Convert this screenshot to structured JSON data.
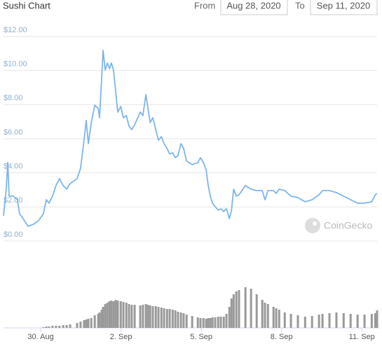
{
  "chart_data": {
    "type": "line",
    "title": "Sushi Chart",
    "controls": {
      "from_label": "From",
      "from_value": "Aug 28, 2020",
      "to_label": "To",
      "to_value": "Sep 11, 2020"
    },
    "watermark": "CoinGecko",
    "x": [
      28.61,
      28.71,
      28.77,
      28.82,
      28.98,
      29.13,
      29.21,
      29.34,
      29.53,
      29.74,
      29.92,
      30.1,
      30.21,
      30.31,
      30.44,
      30.57,
      30.7,
      30.84,
      30.97,
      31.1,
      31.36,
      31.49,
      31.62,
      31.7,
      31.78,
      31.89,
      32.02,
      32.15,
      32.2,
      32.28,
      32.33,
      32.41,
      32.49,
      32.57,
      32.64,
      32.72,
      32.8,
      32.88,
      32.99,
      33.09,
      33.2,
      33.3,
      33.4,
      33.51,
      33.72,
      33.82,
      33.93,
      34.01,
      34.09,
      34.19,
      34.3,
      34.4,
      34.51,
      34.61,
      34.72,
      34.82,
      34.93,
      35.03,
      35.13,
      35.24,
      35.34,
      35.45,
      35.66,
      35.87,
      35.97,
      36.08,
      36.18,
      36.26,
      36.34,
      36.42,
      36.52,
      36.63,
      36.73,
      36.84,
      36.94,
      37.05,
      37.13,
      37.21,
      37.31,
      37.41,
      37.65,
      37.86,
      38.07,
      38.28,
      38.38,
      38.49,
      38.7,
      38.8,
      38.91,
      39.12,
      39.35,
      39.61,
      39.88,
      40.14,
      40.4,
      40.53,
      40.79,
      41.05,
      41.32,
      41.58,
      41.84,
      42.1,
      42.37,
      42.5,
      42.57
    ],
    "series": [
      {
        "color": "#7cb5ec",
        "values": [
          1.48,
          3.04,
          4.6,
          2.63,
          2.63,
          2.42,
          1.6,
          1.32,
          0.86,
          0.99,
          1.19,
          1.6,
          2.42,
          2.22,
          2.63,
          3.25,
          3.66,
          3.25,
          3.04,
          3.37,
          3.66,
          4.27,
          5.92,
          7.07,
          5.71,
          6.95,
          7.97,
          7.77,
          7.23,
          9.62,
          11.18,
          10.03,
          10.44,
          10.11,
          10.44,
          10.03,
          8.8,
          7.56,
          7.89,
          7.23,
          7.36,
          6.74,
          6.53,
          6.82,
          7.56,
          7.36,
          8.59,
          7.77,
          6.95,
          7.23,
          6.53,
          5.92,
          6.12,
          5.71,
          5.43,
          5.1,
          5.18,
          4.89,
          5.01,
          5.71,
          5.43,
          4.69,
          4.48,
          4.6,
          4.89,
          4.6,
          4.19,
          3.25,
          2.63,
          2.22,
          2.01,
          1.81,
          1.89,
          1.73,
          1.89,
          1.32,
          1.81,
          3.04,
          2.63,
          2.71,
          3.25,
          3.04,
          2.96,
          2.96,
          2.42,
          2.96,
          2.96,
          2.79,
          3.04,
          2.96,
          2.63,
          2.55,
          2.3,
          2.42,
          2.71,
          2.96,
          2.96,
          2.84,
          2.63,
          2.42,
          2.22,
          2.22,
          2.3,
          2.71,
          2.79
        ]
      },
      {
        "type": "column",
        "axis": "y2",
        "color": "#999999",
        "values": [
          0,
          0,
          0,
          0,
          0,
          0,
          0,
          0,
          0,
          0,
          0,
          1,
          2,
          2,
          3,
          3,
          3,
          4,
          4,
          5,
          7,
          9,
          11,
          12,
          13,
          14,
          18,
          20,
          22,
          26,
          30,
          34,
          36,
          38,
          39,
          38,
          40,
          39,
          38,
          37,
          36,
          34,
          33,
          33,
          32,
          33,
          34,
          33,
          32,
          31,
          31,
          30,
          29,
          28,
          27,
          27,
          26,
          25,
          23,
          22,
          21,
          19,
          17,
          15,
          14,
          14,
          13,
          14,
          14,
          15,
          15,
          16,
          16,
          16,
          20,
          30,
          42,
          48,
          52,
          54,
          58,
          56,
          48,
          40,
          36,
          34,
          30,
          28,
          26,
          22,
          20,
          18,
          16,
          17,
          19,
          20,
          21,
          22,
          21,
          20,
          19,
          19,
          20,
          21,
          25
        ]
      }
    ],
    "xlim": [
      28.61,
      42.57
    ],
    "xticks": [
      {
        "value": 30,
        "label": "30. Aug"
      },
      {
        "value": 33,
        "label": "2. Sep"
      },
      {
        "value": 36,
        "label": "5. Sep"
      },
      {
        "value": 39,
        "label": "8. Sep"
      },
      {
        "value": 42,
        "label": "11. Sep"
      }
    ],
    "ylim": [
      0,
      12
    ],
    "yticks": [
      {
        "value": 0,
        "label": "$0.00"
      },
      {
        "value": 2,
        "label": "$2.00"
      },
      {
        "value": 4,
        "label": "$4.00"
      },
      {
        "value": 6,
        "label": "$6.00"
      },
      {
        "value": 8,
        "label": "$8.00"
      },
      {
        "value": 10,
        "label": "$10.00"
      },
      {
        "value": 12,
        "label": "$12.00"
      }
    ],
    "y2lim": [
      0,
      70
    ],
    "grid": true
  }
}
